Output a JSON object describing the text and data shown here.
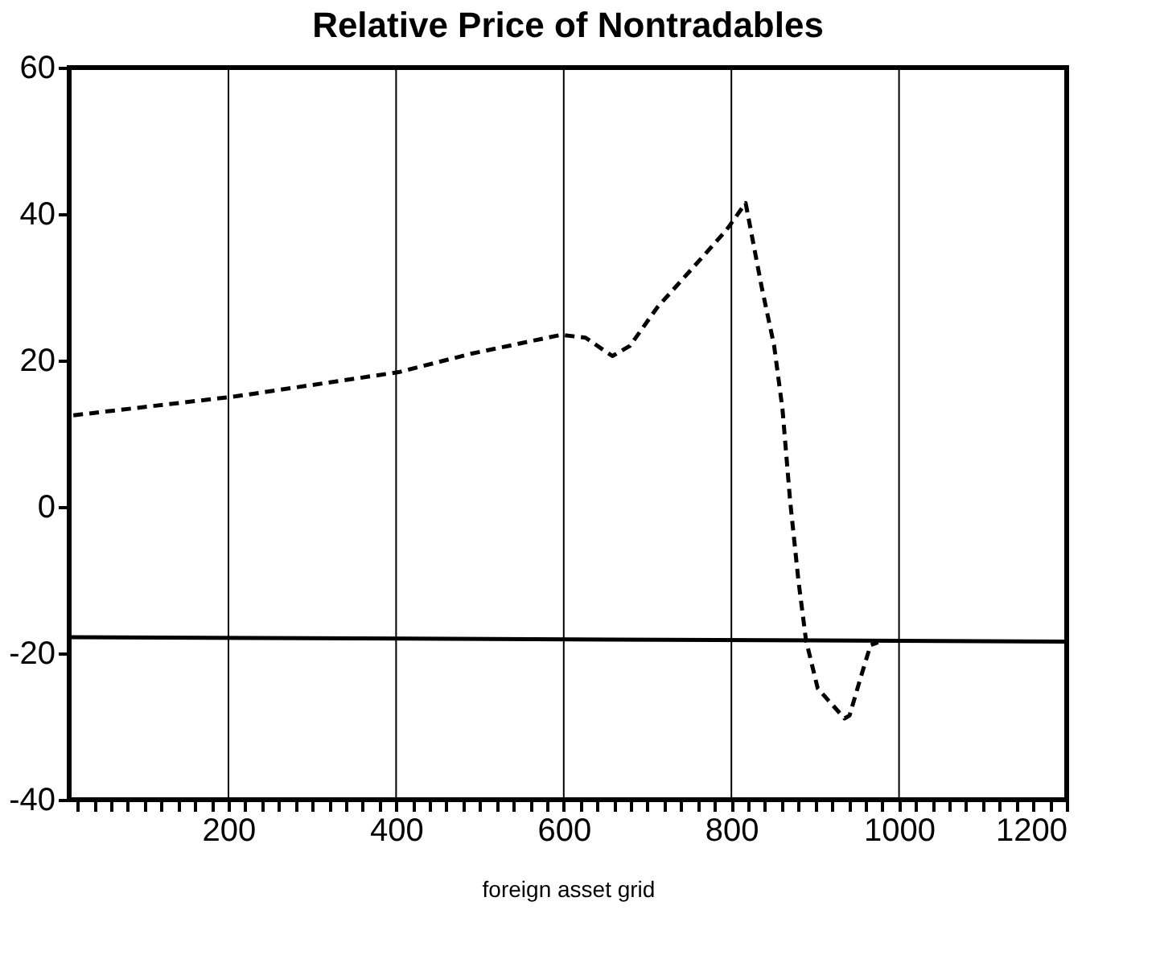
{
  "chart_data": {
    "type": "line",
    "title": "Relative Price of Nontradables",
    "xlabel": "foreign asset grid",
    "xlim": [
      10,
      1200
    ],
    "ylim": [
      -40,
      60
    ],
    "yticks": [
      -40,
      -20,
      0,
      20,
      40,
      60
    ],
    "xticks": [
      {
        "value": 20,
        "label": null
      },
      {
        "value": 40,
        "label": null
      },
      {
        "value": 60,
        "label": null
      },
      {
        "value": 80,
        "label": null
      },
      {
        "value": 100,
        "label": null
      },
      {
        "value": 120,
        "label": null
      },
      {
        "value": 140,
        "label": null
      },
      {
        "value": 160,
        "label": null
      },
      {
        "value": 180,
        "label": null
      },
      200,
      {
        "value": 220,
        "label": null
      },
      {
        "value": 240,
        "label": null
      },
      {
        "value": 260,
        "label": null
      },
      {
        "value": 280,
        "label": null
      },
      {
        "value": 300,
        "label": null
      },
      {
        "value": 320,
        "label": null
      },
      {
        "value": 340,
        "label": null
      },
      {
        "value": 360,
        "label": null
      },
      {
        "value": 380,
        "label": null
      },
      400,
      {
        "value": 420,
        "label": null
      },
      {
        "value": 440,
        "label": null
      },
      {
        "value": 460,
        "label": null
      },
      {
        "value": 480,
        "label": null
      },
      {
        "value": 500,
        "label": null
      },
      {
        "value": 520,
        "label": null
      },
      {
        "value": 540,
        "label": null
      },
      {
        "value": 560,
        "label": null
      },
      {
        "value": 580,
        "label": null
      },
      600,
      {
        "value": 620,
        "label": null
      },
      {
        "value": 640,
        "label": null
      },
      {
        "value": 660,
        "label": null
      },
      {
        "value": 680,
        "label": null
      },
      {
        "value": 700,
        "label": null
      },
      {
        "value": 720,
        "label": null
      },
      {
        "value": 740,
        "label": null
      },
      {
        "value": 760,
        "label": null
      },
      {
        "value": 780,
        "label": null
      },
      800,
      {
        "value": 820,
        "label": null
      },
      {
        "value": 840,
        "label": null
      },
      {
        "value": 860,
        "label": null
      },
      {
        "value": 880,
        "label": null
      },
      {
        "value": 900,
        "label": null
      },
      {
        "value": 920,
        "label": null
      },
      {
        "value": 940,
        "label": null
      },
      {
        "value": 960,
        "label": null
      },
      {
        "value": 980,
        "label": null
      },
      1000,
      {
        "value": 1020,
        "label": null
      },
      {
        "value": 1040,
        "label": null
      },
      {
        "value": 1060,
        "label": null
      },
      {
        "value": 1080,
        "label": null
      },
      {
        "value": 1100,
        "label": null
      },
      {
        "value": 1120,
        "label": null
      },
      {
        "value": 1140,
        "label": null
      },
      {
        "value": 1160,
        "label": null
      },
      {
        "value": 1180,
        "label": null
      },
      1200
    ],
    "grid": "x",
    "marker": "none",
    "series": [
      {
        "color": "#000000",
        "line_style": "dashed",
        "x": [
          15,
          209,
          403,
          489,
          597,
          626,
          658,
          679,
          712,
          763,
          794,
          817,
          836,
          851,
          861,
          870,
          880,
          889,
          903,
          935,
          941,
          954,
          966,
          975
        ],
        "values": [
          12.5,
          15.1,
          18.4,
          20.9,
          23.5,
          23.1,
          20.6,
          22.0,
          27.3,
          33.8,
          37.8,
          41.5,
          30.1,
          22.0,
          13.3,
          0.9,
          -10.1,
          -18.2,
          -24.8,
          -28.9,
          -28.5,
          -23.4,
          -18.9,
          -18.5
        ]
      },
      {
        "color": "#000000",
        "line_style": "solid",
        "x": [
          10,
          1200
        ],
        "values": [
          -17.8,
          -18.4
        ]
      }
    ]
  }
}
